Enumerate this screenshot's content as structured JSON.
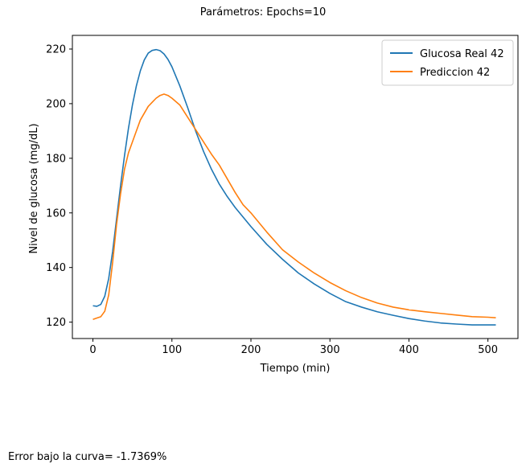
{
  "figure": {
    "suptitle": "Parámetros:  Epochs=10",
    "footer": "Error bajo la curva= -1.7369%"
  },
  "chart_data": {
    "type": "line",
    "title": "",
    "xlabel": "Tiempo (min)",
    "ylabel": "Nivel de glucosa (mg/dL)",
    "xlim": [
      -26,
      538
    ],
    "ylim": [
      114,
      225
    ],
    "xticks": [
      0,
      100,
      200,
      300,
      400,
      500
    ],
    "yticks": [
      120,
      140,
      160,
      180,
      200,
      220
    ],
    "grid": false,
    "legend_position": "top-right",
    "series": [
      {
        "name": "Glucosa Real 42",
        "color": "#1f77b4",
        "x": [
          0,
          5,
          10,
          15,
          20,
          25,
          30,
          35,
          40,
          45,
          50,
          55,
          60,
          65,
          70,
          75,
          80,
          85,
          90,
          95,
          100,
          110,
          120,
          130,
          140,
          150,
          160,
          170,
          180,
          190,
          200,
          220,
          240,
          260,
          280,
          300,
          320,
          340,
          360,
          380,
          400,
          420,
          440,
          460,
          480,
          500,
          510
        ],
        "y": [
          126,
          125.8,
          126.5,
          129.5,
          136,
          146,
          158,
          170,
          181,
          191,
          199.5,
          206.5,
          212,
          216,
          218.5,
          219.5,
          219.8,
          219.4,
          218.2,
          216.2,
          213.5,
          206.5,
          198.5,
          190,
          182.5,
          176,
          170.5,
          166,
          162,
          158.5,
          155,
          148.5,
          143,
          138,
          134,
          130.5,
          127.5,
          125.5,
          123.8,
          122.5,
          121.3,
          120.4,
          119.7,
          119.3,
          119.0,
          119.0,
          119.0
        ]
      },
      {
        "name": "Prediccion 42",
        "color": "#ff7f0e",
        "x": [
          0,
          5,
          10,
          15,
          20,
          25,
          30,
          35,
          40,
          45,
          50,
          55,
          60,
          65,
          70,
          75,
          80,
          85,
          90,
          95,
          100,
          110,
          120,
          130,
          140,
          150,
          160,
          170,
          180,
          190,
          200,
          220,
          240,
          260,
          280,
          300,
          320,
          340,
          360,
          380,
          400,
          420,
          440,
          460,
          480,
          500,
          510
        ],
        "y": [
          121,
          121.5,
          122,
          124,
          130,
          142,
          156,
          167,
          176,
          182,
          186,
          190,
          194,
          196.5,
          199,
          200.5,
          202,
          203,
          203.5,
          203,
          202,
          199.5,
          195,
          190.5,
          186,
          181.5,
          177.5,
          172.5,
          167.5,
          163,
          160,
          153,
          146.5,
          142,
          138,
          134.5,
          131.5,
          129,
          127,
          125.5,
          124.5,
          123.8,
          123.2,
          122.6,
          122.0,
          121.8,
          121.6
        ]
      }
    ]
  }
}
